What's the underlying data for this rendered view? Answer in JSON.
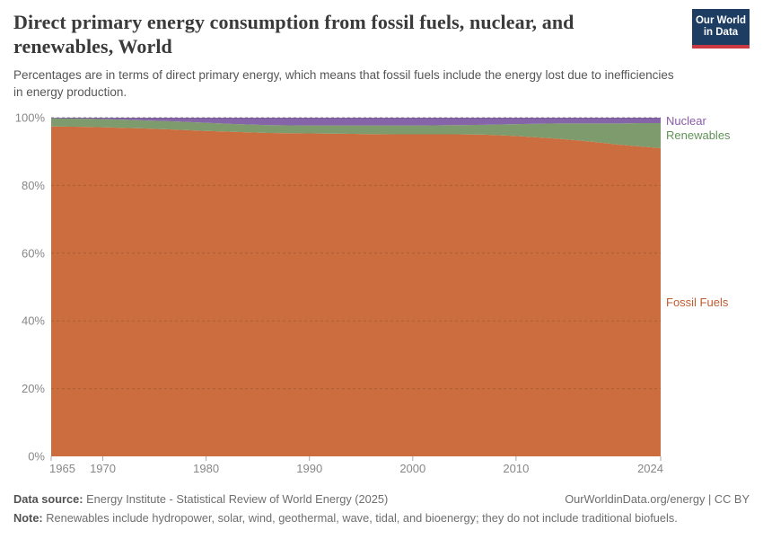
{
  "header": {
    "title_lines": [
      "Direct primary energy consumption from fossil fuels, nuclear, and",
      "renewables, World"
    ],
    "subtitle_lines": [
      "Percentages are in terms of direct primary energy, which means that fossil fuels include the energy lost due to inefficiencies",
      "in energy production."
    ],
    "logo": {
      "line1": "Our World",
      "line2": "in Data",
      "bg_color": "#1d3d63",
      "bar_color": "#cb3a42"
    }
  },
  "chart_data": {
    "type": "area",
    "stacking": "percent",
    "title": "Direct primary energy consumption from fossil fuels, nuclear, and renewables, World",
    "xlabel": "",
    "ylabel": "",
    "x_range": [
      1965,
      2024
    ],
    "y_range": [
      0,
      100
    ],
    "grid": "dashed-horizontal",
    "legend_position": "right-of-plot",
    "x": [
      1965,
      1968,
      1971,
      1974,
      1977,
      1980,
      1983,
      1986,
      1989,
      1992,
      1995,
      1998,
      2001,
      2004,
      2007,
      2010,
      2012,
      2014,
      2016,
      2018,
      2020,
      2022,
      2024
    ],
    "series": [
      {
        "name": "Fossil Fuels",
        "color": "#cb6d3e",
        "label_color": "#bf5b31",
        "values": [
          97.4,
          97.3,
          97.1,
          96.8,
          96.5,
          96.1,
          95.8,
          95.5,
          95.4,
          95.3,
          95.2,
          95.1,
          95.1,
          95.1,
          95.0,
          94.6,
          94.2,
          93.8,
          93.3,
          92.7,
          92.0,
          91.5,
          91.0
        ]
      },
      {
        "name": "Renewables",
        "color": "#7d9b6c",
        "label_color": "#62925a",
        "values": [
          2.4,
          2.4,
          2.4,
          2.4,
          2.4,
          2.4,
          2.3,
          2.3,
          2.3,
          2.4,
          2.5,
          2.6,
          2.6,
          2.7,
          2.9,
          3.5,
          4.0,
          4.5,
          5.0,
          5.6,
          6.3,
          6.9,
          7.4
        ]
      },
      {
        "name": "Nuclear",
        "color": "#8564a8",
        "label_color": "#8a5ba8",
        "values": [
          0.2,
          0.3,
          0.5,
          0.8,
          1.1,
          1.5,
          1.9,
          2.2,
          2.3,
          2.3,
          2.3,
          2.3,
          2.3,
          2.2,
          2.1,
          1.9,
          1.8,
          1.7,
          1.7,
          1.7,
          1.7,
          1.6,
          1.6
        ]
      }
    ],
    "x_ticks": [
      1965,
      1970,
      1980,
      1990,
      2000,
      2010,
      2024
    ],
    "y_ticks": [
      0,
      20,
      40,
      60,
      80,
      100
    ],
    "y_tick_suffix": "%",
    "axis_text_color": "#878787"
  },
  "footer": {
    "source_label": "Data source:",
    "source_text": " Energy Institute - Statistical Review of World Energy (2025)",
    "credit": "OurWorldinData.org/energy | CC BY",
    "note_label": "Note:",
    "note_text": " Renewables include hydropower, solar, wind, geothermal, wave, tidal, and bioenergy; they do not include traditional biofuels."
  }
}
